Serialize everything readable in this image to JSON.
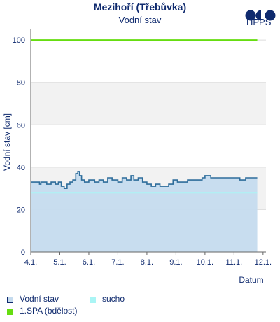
{
  "header": {
    "title": "Mezihoří (Třebůvka)",
    "subtitle": "Vodní stav",
    "logo_text": "HPPS"
  },
  "chart_data": {
    "type": "area",
    "ylabel": "Vodní stav [cm]",
    "xlabel": "Datum",
    "ylim": [
      0,
      105
    ],
    "yticks": [
      0,
      20,
      40,
      60,
      80,
      100
    ],
    "xlim": [
      4.0,
      12.1
    ],
    "xticks": [
      4,
      5,
      6,
      7,
      8,
      9,
      10,
      11,
      12
    ],
    "xtick_labels": [
      "4.1.",
      "5.1.",
      "6.1.",
      "7.1.",
      "8.1.",
      "9.1.",
      "10.1.",
      "11.1.",
      "12.1."
    ],
    "grid": true,
    "bands": [
      [
        20,
        40
      ],
      [
        60,
        80
      ]
    ],
    "series": [
      {
        "name": "Vodní stav",
        "color": "#2e6d9b",
        "fill": "#c5dbee",
        "x": [
          4.0,
          4.3,
          4.35,
          4.5,
          4.55,
          4.7,
          4.75,
          4.85,
          4.95,
          5.05,
          5.15,
          5.25,
          5.35,
          5.45,
          5.55,
          5.62,
          5.68,
          5.75,
          5.85,
          6.0,
          6.2,
          6.35,
          6.5,
          6.65,
          6.8,
          7.0,
          7.15,
          7.3,
          7.45,
          7.55,
          7.7,
          7.85,
          8.0,
          8.15,
          8.3,
          8.45,
          8.6,
          8.75,
          8.9,
          9.05,
          9.2,
          9.4,
          9.6,
          9.8,
          9.9,
          10.0,
          10.2,
          10.5,
          10.8,
          11.0,
          11.2,
          11.4,
          11.5,
          11.6,
          11.75,
          11.8
        ],
        "y": [
          33,
          32,
          33,
          33,
          32,
          33,
          33,
          32,
          33,
          31,
          30,
          32,
          33,
          34,
          37,
          38,
          36,
          34,
          33,
          34,
          33,
          34,
          33,
          35,
          34,
          33,
          35,
          34,
          36,
          34,
          35,
          33,
          32,
          31,
          32,
          31,
          31,
          32,
          34,
          33,
          33,
          34,
          34,
          34,
          35,
          36,
          35,
          35,
          35,
          35,
          34,
          35,
          35,
          35,
          35,
          35
        ]
      }
    ],
    "thresholds": [
      {
        "name": "sucho",
        "value": 28,
        "color": "#aaf5f5"
      },
      {
        "name": "1.SPA (bdělost)",
        "value": 100,
        "color": "#66dd11"
      }
    ]
  }
}
